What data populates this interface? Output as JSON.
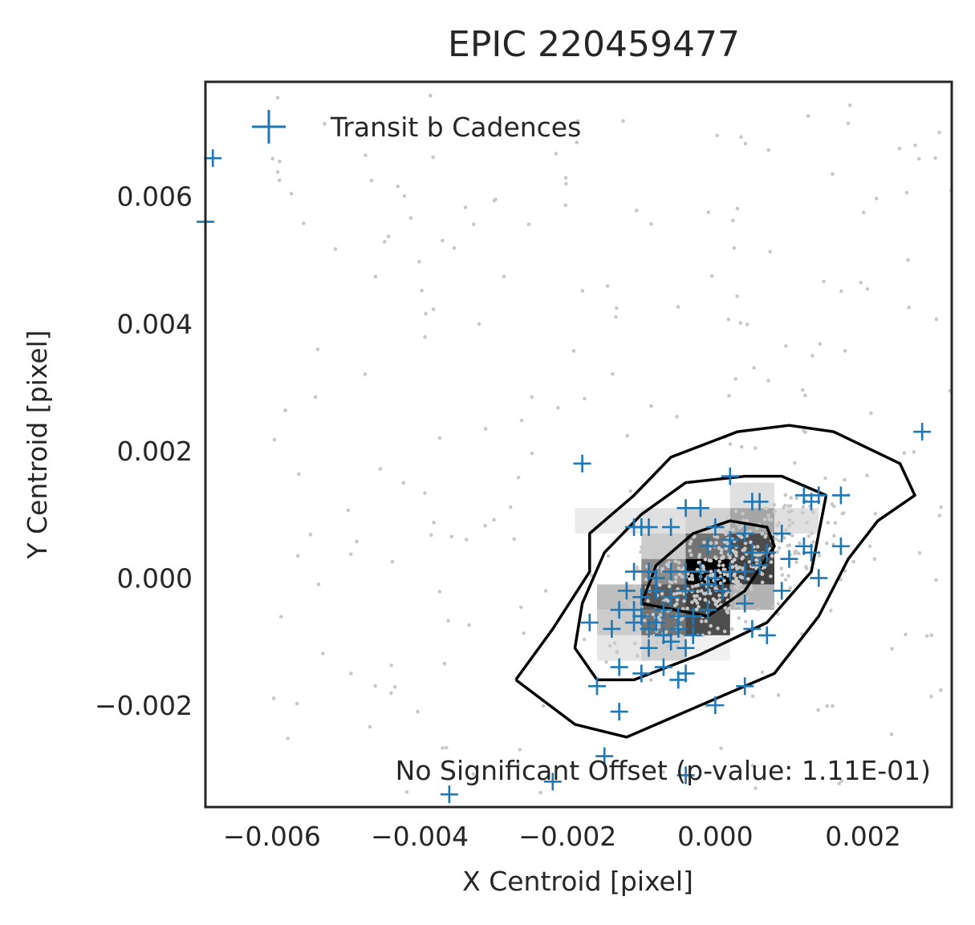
{
  "chart_data": {
    "type": "scatter",
    "title": "EPIC 220459477",
    "xlabel": "X Centroid [pixel]",
    "ylabel": "Y Centroid [pixel]",
    "xlim": [
      -0.0069,
      0.0032
    ],
    "ylim": [
      -0.0036,
      0.0078
    ],
    "x_ticks": [
      -0.006,
      -0.004,
      -0.002,
      0.0,
      0.002
    ],
    "x_tick_labels": [
      "−0.006",
      "−0.004",
      "−0.002",
      "0.000",
      "0.002"
    ],
    "y_ticks": [
      -0.002,
      0.0,
      0.002,
      0.004,
      0.006
    ],
    "y_tick_labels": [
      "−0.002",
      "0.000",
      "0.002",
      "0.004",
      "0.006"
    ],
    "grid": false,
    "legend": {
      "position": "upper-left",
      "entries": [
        "Transit b Cadences"
      ]
    },
    "annotation": "No Significant Offset (p-value: 1.11E-01)",
    "colors": {
      "transit": "#1f77b4",
      "background_points": "#c8c8c8",
      "contour": "#000000",
      "axes": "#262626"
    },
    "density_bins": [
      {
        "x": -0.0013,
        "y": 0.0009,
        "w": 0.0012,
        "h": 0.0004,
        "level": 0.08
      },
      {
        "x": -0.0007,
        "y": 0.0009,
        "w": 0.0006,
        "h": 0.0004,
        "level": 0.12
      },
      {
        "x": -0.0001,
        "y": 0.0009,
        "w": 0.0006,
        "h": 0.0004,
        "level": 0.18
      },
      {
        "x": 0.0005,
        "y": 0.0013,
        "w": 0.0006,
        "h": 0.0004,
        "level": 0.12
      },
      {
        "x": 0.0005,
        "y": 0.0009,
        "w": 0.0006,
        "h": 0.0004,
        "level": 0.35
      },
      {
        "x": 0.0011,
        "y": 0.0009,
        "w": 0.0006,
        "h": 0.0004,
        "level": 0.12
      },
      {
        "x": -0.0007,
        "y": 0.0005,
        "w": 0.0006,
        "h": 0.0004,
        "level": 0.2
      },
      {
        "x": -0.0001,
        "y": 0.0005,
        "w": 0.0006,
        "h": 0.0004,
        "level": 0.55
      },
      {
        "x": 0.0005,
        "y": 0.0005,
        "w": 0.0006,
        "h": 0.0004,
        "level": 0.7
      },
      {
        "x": -0.0007,
        "y": 0.0001,
        "w": 0.0006,
        "h": 0.0004,
        "level": 0.45
      },
      {
        "x": -0.0001,
        "y": 0.0001,
        "w": 0.0006,
        "h": 0.0004,
        "level": 1.0
      },
      {
        "x": 0.0005,
        "y": 0.0001,
        "w": 0.0006,
        "h": 0.0004,
        "level": 0.75
      },
      {
        "x": -0.0013,
        "y": -0.0003,
        "w": 0.0006,
        "h": 0.0004,
        "level": 0.25
      },
      {
        "x": -0.0007,
        "y": -0.0003,
        "w": 0.0006,
        "h": 0.0004,
        "level": 0.65
      },
      {
        "x": -0.0001,
        "y": -0.0003,
        "w": 0.0006,
        "h": 0.0004,
        "level": 0.75
      },
      {
        "x": 0.0005,
        "y": -0.0003,
        "w": 0.0006,
        "h": 0.0004,
        "level": 0.3
      },
      {
        "x": -0.0013,
        "y": -0.0007,
        "w": 0.0006,
        "h": 0.0004,
        "level": 0.2
      },
      {
        "x": -0.0007,
        "y": -0.0007,
        "w": 0.0006,
        "h": 0.0004,
        "level": 0.55
      },
      {
        "x": -0.0001,
        "y": -0.0007,
        "w": 0.0006,
        "h": 0.0004,
        "level": 0.7
      },
      {
        "x": -0.0013,
        "y": -0.0011,
        "w": 0.0006,
        "h": 0.0004,
        "level": 0.1
      },
      {
        "x": -0.0007,
        "y": -0.0011,
        "w": 0.0006,
        "h": 0.0004,
        "level": 0.18
      },
      {
        "x": -0.0001,
        "y": -0.0011,
        "w": 0.0006,
        "h": 0.0004,
        "level": 0.06
      }
    ],
    "contours": [
      {
        "level": "outer",
        "points": [
          [
            -0.0027,
            -0.0016
          ],
          [
            -0.0019,
            -0.0023
          ],
          [
            -0.0012,
            -0.0025
          ],
          [
            0.0,
            -0.0019
          ],
          [
            0.0008,
            -0.0015
          ],
          [
            0.0014,
            -0.0006
          ],
          [
            0.0018,
            0.0003
          ],
          [
            0.0022,
            0.0009
          ],
          [
            0.0027,
            0.0013
          ],
          [
            0.0025,
            0.0018
          ],
          [
            0.0016,
            0.0023
          ],
          [
            0.001,
            0.0024
          ],
          [
            0.0003,
            0.0023
          ],
          [
            -0.0006,
            0.0019
          ],
          [
            -0.0011,
            0.0013
          ],
          [
            -0.0017,
            0.0007
          ],
          [
            -0.0017,
            0.0001
          ],
          [
            -0.0022,
            -0.0008
          ],
          [
            -0.0027,
            -0.0016
          ]
        ]
      },
      {
        "level": "middle",
        "points": [
          [
            -0.0016,
            -0.0016
          ],
          [
            -0.0011,
            -0.0016
          ],
          [
            -0.0002,
            -0.0012
          ],
          [
            0.0007,
            -0.0007
          ],
          [
            0.0013,
            0.0001
          ],
          [
            0.0015,
            0.0013
          ],
          [
            0.0013,
            0.0014
          ],
          [
            0.0009,
            0.0016
          ],
          [
            0.0004,
            0.0016
          ],
          [
            -0.0004,
            0.0015
          ],
          [
            -0.001,
            0.001
          ],
          [
            -0.0015,
            0.0004
          ],
          [
            -0.0018,
            -0.0004
          ],
          [
            -0.0019,
            -0.0011
          ],
          [
            -0.0016,
            -0.0016
          ]
        ]
      },
      {
        "level": "inner",
        "points": [
          [
            -0.001,
            -0.0004
          ],
          [
            -0.0001,
            -0.0006
          ],
          [
            0.0004,
            -0.0002
          ],
          [
            0.0008,
            0.0005
          ],
          [
            0.0007,
            0.0008
          ],
          [
            0.0002,
            0.0009
          ],
          [
            -0.0003,
            0.0007
          ],
          [
            -0.0008,
            0.0002
          ],
          [
            -0.001,
            -0.0004
          ]
        ]
      }
    ],
    "transit_points": [
      [
        -0.0068,
        0.0066
      ],
      [
        -0.0069,
        0.0056
      ],
      [
        -0.0018,
        0.0018
      ],
      [
        0.0028,
        0.0023
      ],
      [
        0.0002,
        0.0016
      ],
      [
        0.0017,
        0.0013
      ],
      [
        0.0014,
        0.0013
      ],
      [
        0.0012,
        0.0013
      ],
      [
        0.0013,
        0.0012
      ],
      [
        0.0005,
        0.0012
      ],
      [
        0.0006,
        0.0012
      ],
      [
        -0.0004,
        0.0011
      ],
      [
        -0.0002,
        0.0011
      ],
      [
        -0.0011,
        0.0008
      ],
      [
        -0.001,
        0.0008
      ],
      [
        -0.0009,
        0.0008
      ],
      [
        -0.0006,
        0.0008
      ],
      [
        0.0,
        0.0008
      ],
      [
        0.0004,
        0.0007
      ],
      [
        0.0002,
        0.0006
      ],
      [
        0.0009,
        0.0007
      ],
      [
        0.0012,
        0.0005
      ],
      [
        -0.0001,
        0.0005
      ],
      [
        0.0002,
        0.0005
      ],
      [
        0.0005,
        0.0004
      ],
      [
        0.0007,
        0.0004
      ],
      [
        0.001,
        0.0003
      ],
      [
        0.0013,
        0.0004
      ],
      [
        0.0017,
        0.0005
      ],
      [
        -0.0011,
        0.0001
      ],
      [
        -0.0009,
        0.0001
      ],
      [
        -0.0008,
        0.0
      ],
      [
        -0.0006,
        0.0001
      ],
      [
        -0.0004,
        0.0001
      ],
      [
        -0.0002,
        0.0001
      ],
      [
        0.0,
        0.0
      ],
      [
        0.0002,
        0.0001
      ],
      [
        0.0004,
        0.0001
      ],
      [
        0.0006,
        0.0002
      ],
      [
        -0.0012,
        -0.0002
      ],
      [
        -0.001,
        -0.0003
      ],
      [
        -0.0008,
        -0.0002
      ],
      [
        -0.0006,
        -0.0003
      ],
      [
        -0.0004,
        -0.0002
      ],
      [
        -0.0001,
        -0.0001
      ],
      [
        0.0001,
        -0.0002
      ],
      [
        0.0009,
        -0.0002
      ],
      [
        0.0014,
        0.0
      ],
      [
        -0.0013,
        -0.0005
      ],
      [
        -0.0011,
        -0.0005
      ],
      [
        -0.001,
        -0.0006
      ],
      [
        -0.0008,
        -0.0007
      ],
      [
        -0.0007,
        -0.0005
      ],
      [
        -0.0005,
        -0.0006
      ],
      [
        -0.0003,
        -0.0006
      ],
      [
        -0.0001,
        -0.0005
      ],
      [
        0.0004,
        -0.0004
      ],
      [
        -0.0017,
        -0.0007
      ],
      [
        -0.0014,
        -0.0008
      ],
      [
        -0.0011,
        -0.0007
      ],
      [
        -0.0009,
        -0.0008
      ],
      [
        -0.0007,
        -0.0009
      ],
      [
        -0.0005,
        -0.0008
      ],
      [
        -0.0003,
        -0.0009
      ],
      [
        0.0005,
        -0.0008
      ],
      [
        0.0007,
        -0.0009
      ],
      [
        -0.0009,
        -0.0011
      ],
      [
        -0.0006,
        -0.001
      ],
      [
        -0.0004,
        -0.0011
      ],
      [
        -0.0013,
        -0.0014
      ],
      [
        -0.001,
        -0.0015
      ],
      [
        -0.0007,
        -0.0014
      ],
      [
        -0.0005,
        -0.0016
      ],
      [
        -0.0004,
        -0.0015
      ],
      [
        -0.0016,
        -0.0017
      ],
      [
        0.0004,
        -0.0017
      ],
      [
        0.0,
        -0.002
      ],
      [
        -0.0013,
        -0.0021
      ],
      [
        -0.0015,
        -0.0028
      ],
      [
        -0.0022,
        -0.0032
      ],
      [
        -0.0004,
        -0.0031
      ],
      [
        -0.0036,
        -0.0034
      ]
    ]
  }
}
